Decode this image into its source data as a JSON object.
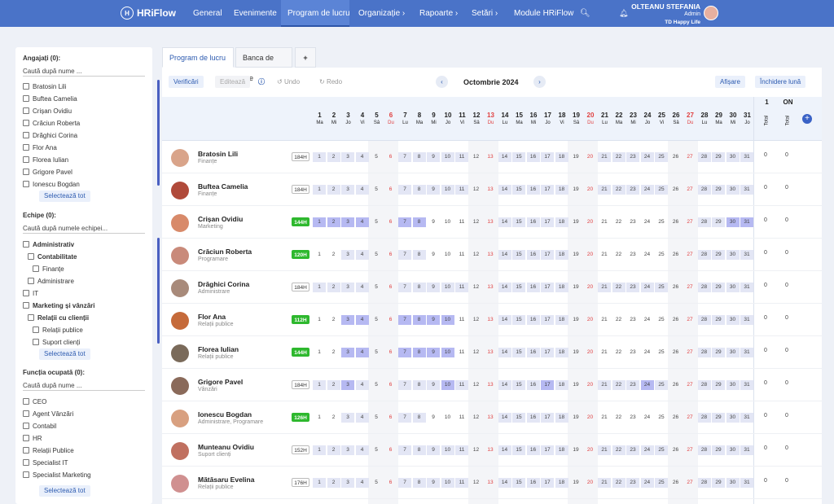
{
  "nav": {
    "logo": "HRiFlow",
    "items": [
      "General",
      "Evenimente",
      "Program de lucru",
      "Organizație ›",
      "Rapoarte ›",
      "Setări ›",
      "Module HRiFlow"
    ],
    "user_name": "OLTEANU STEFANIA",
    "user_role": "Admin",
    "user_company": "TD Happy Life"
  },
  "left": {
    "employees_title": "Angajați (0):",
    "employees_placeholder": "Caută după nume ...",
    "employees": [
      "Bratosin Lili",
      "Buftea Camelia",
      "Crișan Ovidiu",
      "Crăciun Roberta",
      "Drăghici Corina",
      "Flor Ana",
      "Florea Iulian",
      "Grigore Pavel",
      "Ionescu Bogdan"
    ],
    "select_all": "Selectează tot",
    "teams_title": "Echipe (0):",
    "teams_placeholder": "Caută după numele echipei...",
    "teams": [
      {
        "label": "Administrativ",
        "bold": true,
        "indent": 0
      },
      {
        "label": "Contabilitate",
        "bold": true,
        "indent": 1
      },
      {
        "label": "Finanțe",
        "bold": false,
        "indent": 2
      },
      {
        "label": "Administrare",
        "bold": false,
        "indent": 1
      },
      {
        "label": "IT",
        "bold": false,
        "indent": 0
      },
      {
        "label": "Marketing și vânzări",
        "bold": true,
        "indent": 0
      },
      {
        "label": "Relații cu clienții",
        "bold": true,
        "indent": 1
      },
      {
        "label": "Relații publice",
        "bold": false,
        "indent": 2
      },
      {
        "label": "Suport clienți",
        "bold": false,
        "indent": 2
      }
    ],
    "functions_title": "Funcția ocupată (0):",
    "functions_placeholder": "Caută după nume ...",
    "functions": [
      "CEO",
      "Agent Vânzări",
      "Contabil",
      "HR",
      "Relații Publice",
      "Specialist IT",
      "Specialist Marketing"
    ]
  },
  "tabs": [
    "Program de lucru",
    "Banca de ore",
    "+"
  ],
  "toolbar": {
    "verify": "Verificări",
    "edit": "Editează",
    "undo": "Undo",
    "redo": "Redo",
    "month": "Octombrie 2024",
    "display": "Afișare",
    "close_month": "Închidere lună"
  },
  "days": [
    {
      "n": "1",
      "d": "Ma"
    },
    {
      "n": "2",
      "d": "Mi"
    },
    {
      "n": "3",
      "d": "Jo"
    },
    {
      "n": "4",
      "d": "Vi"
    },
    {
      "n": "5",
      "d": "Sâ"
    },
    {
      "n": "6",
      "d": "Du"
    },
    {
      "n": "7",
      "d": "Lu"
    },
    {
      "n": "8",
      "d": "Ma"
    },
    {
      "n": "9",
      "d": "Mi"
    },
    {
      "n": "10",
      "d": "Jo"
    },
    {
      "n": "11",
      "d": "Vi"
    },
    {
      "n": "12",
      "d": "Sâ"
    },
    {
      "n": "13",
      "d": "Du"
    },
    {
      "n": "14",
      "d": "Lu"
    },
    {
      "n": "15",
      "d": "Ma"
    },
    {
      "n": "16",
      "d": "Mi"
    },
    {
      "n": "17",
      "d": "Jo"
    },
    {
      "n": "18",
      "d": "Vi"
    },
    {
      "n": "19",
      "d": "Sâ"
    },
    {
      "n": "20",
      "d": "Du"
    },
    {
      "n": "21",
      "d": "Lu"
    },
    {
      "n": "22",
      "d": "Ma"
    },
    {
      "n": "23",
      "d": "Mi"
    },
    {
      "n": "24",
      "d": "Jo"
    },
    {
      "n": "25",
      "d": "Vi"
    },
    {
      "n": "26",
      "d": "Sâ"
    },
    {
      "n": "27",
      "d": "Du"
    },
    {
      "n": "28",
      "d": "Lu"
    },
    {
      "n": "29",
      "d": "Ma"
    },
    {
      "n": "30",
      "d": "Mi"
    },
    {
      "n": "31",
      "d": "Jo"
    }
  ],
  "totals_header": {
    "col1": "1",
    "col2": "ON",
    "sub": "Total"
  },
  "employees_rows": [
    {
      "name": "Bratosin Lili",
      "dept": "Finanțe",
      "hours": "184H",
      "green": false,
      "avatar": "#d9a48a",
      "h": [],
      "t1": "0",
      "t2": "0"
    },
    {
      "name": "Buftea Camelia",
      "dept": "Finanțe",
      "hours": "184H",
      "green": false,
      "avatar": "#b04a3a",
      "h": [],
      "t1": "0",
      "t2": "0"
    },
    {
      "name": "Crișan Ovidiu",
      "dept": "Marketing",
      "hours": "144H",
      "green": true,
      "avatar": "#d88a6a",
      "h": [
        1,
        2,
        3,
        4,
        7,
        8,
        30,
        31
      ],
      "t1": "0",
      "t2": "0"
    },
    {
      "name": "Crăciun Roberta",
      "dept": "Programare",
      "hours": "120H",
      "green": true,
      "avatar": "#c98a7a",
      "h": [],
      "t1": "0",
      "t2": "0"
    },
    {
      "name": "Drăghici Corina",
      "dept": "Administrare",
      "hours": "184H",
      "green": false,
      "avatar": "#a88a7a",
      "h": [],
      "t1": "0",
      "t2": "0"
    },
    {
      "name": "Flor Ana",
      "dept": "Relații publice",
      "hours": "112H",
      "green": true,
      "avatar": "#c56a3a",
      "h": [
        3,
        4,
        7,
        8,
        9,
        10
      ],
      "t1": "0",
      "t2": "0"
    },
    {
      "name": "Florea Iulian",
      "dept": "Relații publice",
      "hours": "144H",
      "green": true,
      "avatar": "#7a6a5a",
      "h": [
        3,
        4,
        7,
        8,
        9,
        10
      ],
      "t1": "0",
      "t2": "0"
    },
    {
      "name": "Grigore Pavel",
      "dept": "Vânzări",
      "hours": "184H",
      "green": false,
      "avatar": "#8a6a5a",
      "h": [
        3,
        10,
        17,
        24
      ],
      "t1": "0",
      "t2": "0"
    },
    {
      "name": "Ionescu Bogdan",
      "dept": "Administrare, Programare",
      "hours": "126H",
      "green": true,
      "avatar": "#d8a080",
      "h": [],
      "t1": "0",
      "t2": "0"
    },
    {
      "name": "Munteanu Ovidiu",
      "dept": "Suport clienți",
      "hours": "152H",
      "green": false,
      "avatar": "#c07060",
      "h": [],
      "t1": "0",
      "t2": "0"
    },
    {
      "name": "Mătăsaru Evelina",
      "dept": "Relații publice",
      "hours": "176H",
      "green": false,
      "avatar": "#d09090",
      "h": [],
      "t1": "0",
      "t2": "0"
    }
  ],
  "colors": {
    "nav": "#4a73c8",
    "accent": "#2d5bb0",
    "holiday": "#b6b9f2",
    "workday": "#e3e6f5",
    "badge_green": "#2eb82e",
    "weekend_red": "#e04040"
  }
}
